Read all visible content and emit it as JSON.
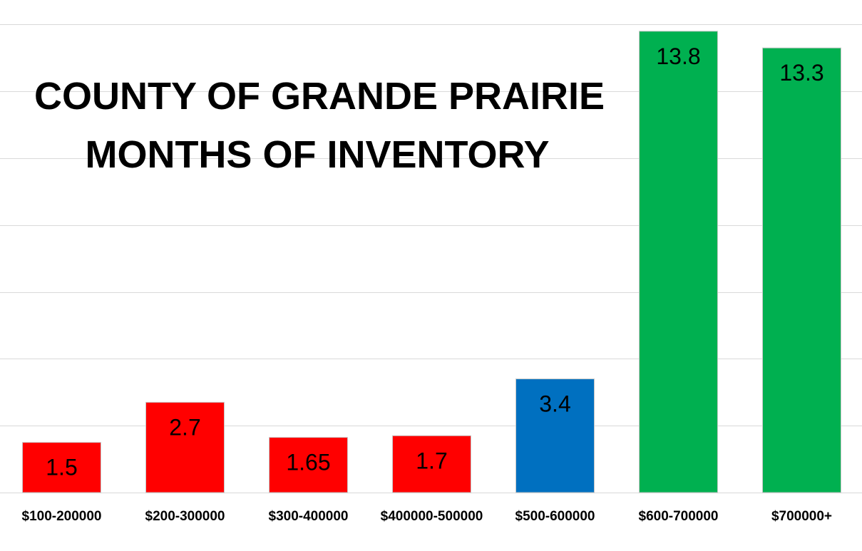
{
  "chart_data": {
    "type": "bar",
    "title": [
      "COUNTY OF GRANDE PRAIRIE",
      "MONTHS OF INVENTORY"
    ],
    "xlabel": "",
    "ylabel": "",
    "ylim": [
      0,
      14
    ],
    "grid": true,
    "legend": "none",
    "categories": [
      "$100-200000",
      "$200-300000",
      "$300-400000",
      "$400000-500000",
      "$500-600000",
      "$600-700000",
      "$700000+"
    ],
    "values": [
      1.5,
      2.7,
      1.65,
      1.7,
      3.4,
      13.8,
      13.3
    ],
    "data_labels": [
      "1.5",
      "2.7",
      "1.65",
      "1.7",
      "3.4",
      "13.8",
      "13.3"
    ],
    "colors": [
      "#ff0000",
      "#ff0000",
      "#ff0000",
      "#ff0000",
      "#0070c0",
      "#00b050",
      "#00b050"
    ]
  }
}
